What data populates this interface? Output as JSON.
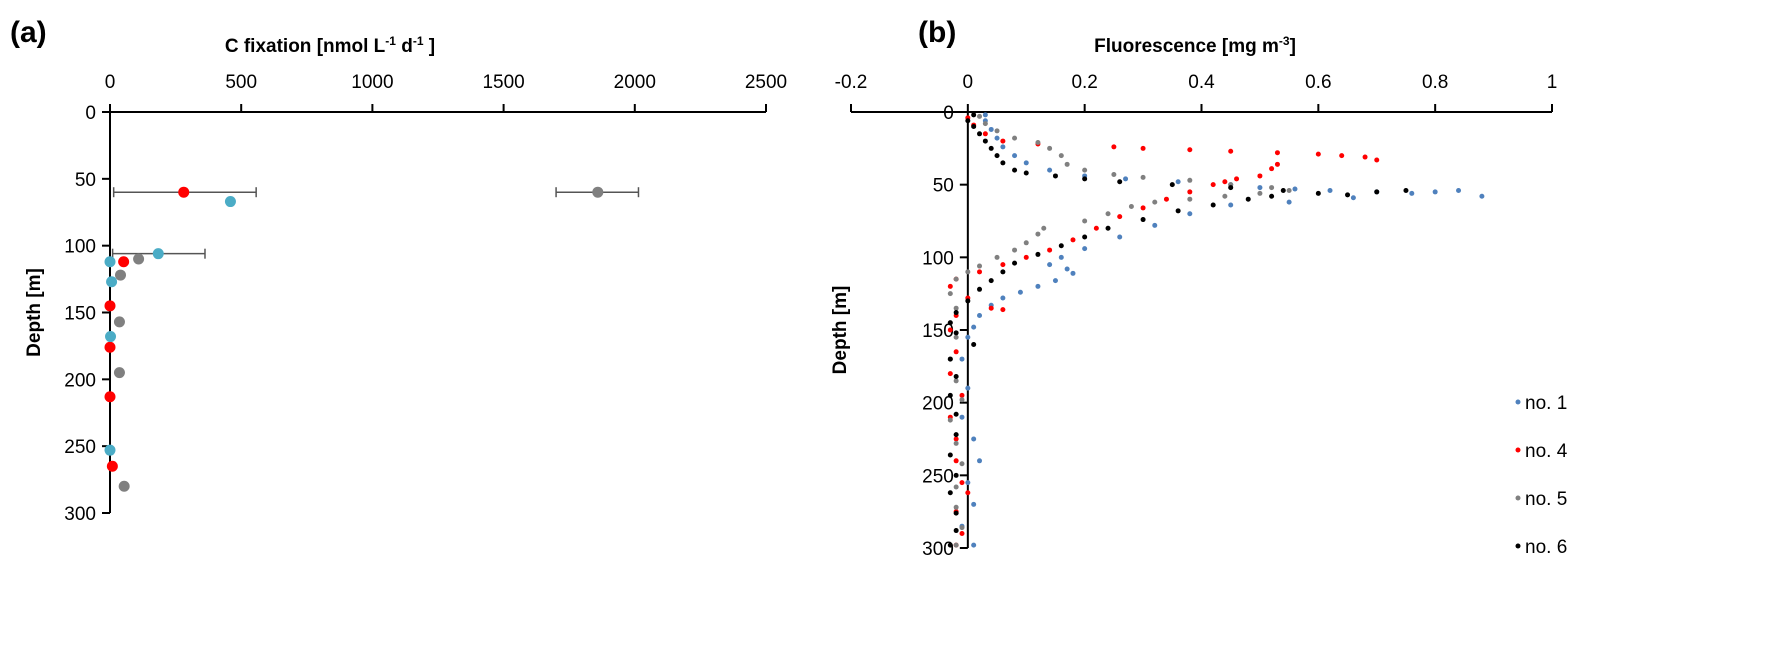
{
  "chart_data": [
    {
      "panel_label": "(a)",
      "type": "scatter",
      "xlabel_parts": [
        "C fixation [nmol L",
        "-1",
        " d",
        "-1",
        " ]"
      ],
      "ylabel": "Depth [m]",
      "xlim": [
        0,
        2500
      ],
      "ylim": [
        0,
        300
      ],
      "y_inverted": true,
      "x_axis_position": "top",
      "xticks": [
        "0",
        "500",
        "1000",
        "1500",
        "2000",
        "2500"
      ],
      "yticks": [
        "0",
        "50",
        "100",
        "150",
        "200",
        "250",
        "300"
      ],
      "grid": false,
      "legend": "none",
      "series": [
        {
          "color": "#FF0000",
          "points": [
            {
              "x": 281,
              "y": 60,
              "xerr": [
                14,
                557
              ]
            },
            {
              "x": 52,
              "y": 112
            },
            {
              "x": 0,
              "y": 145
            },
            {
              "x": 0,
              "y": 176
            },
            {
              "x": 0,
              "y": 213
            },
            {
              "x": 9,
              "y": 265
            }
          ]
        },
        {
          "color": "#4BACC6",
          "points": [
            {
              "x": 459,
              "y": 67
            },
            {
              "x": 184,
              "y": 106,
              "xerr": [
                10,
                362
              ]
            },
            {
              "x": 0,
              "y": 112
            },
            {
              "x": 6,
              "y": 127
            },
            {
              "x": 2,
              "y": 168
            },
            {
              "x": 0,
              "y": 253
            }
          ]
        },
        {
          "color": "#808080",
          "points": [
            {
              "x": 1859,
              "y": 60,
              "xerr": [
                1700,
                2014
              ]
            },
            {
              "x": 109,
              "y": 110
            },
            {
              "x": 40,
              "y": 122
            },
            {
              "x": 36,
              "y": 157
            },
            {
              "x": 36,
              "y": 195
            },
            {
              "x": 54,
              "y": 280
            }
          ]
        }
      ]
    },
    {
      "panel_label": "(b)",
      "type": "scatter",
      "xlabel_parts": [
        "Fluorescence [mg m",
        "-3",
        "]"
      ],
      "ylabel": "Depth [m]",
      "xlim": [
        -0.2,
        1
      ],
      "ylim": [
        0,
        300
      ],
      "y_inverted": true,
      "x_axis_position": "top",
      "xticks": [
        "-0.2",
        "0",
        "0.2",
        "0.4",
        "0.6",
        "0.8",
        "1"
      ],
      "yticks": [
        "0",
        "50",
        "100",
        "150",
        "200",
        "250",
        "300"
      ],
      "grid": false,
      "legend": "right",
      "series": [
        {
          "name": "no. 1",
          "color": "#4F81BD",
          "points": [
            [
              0.03,
              2
            ],
            [
              0.03,
              6
            ],
            [
              0.04,
              12
            ],
            [
              0.05,
              18
            ],
            [
              0.06,
              24
            ],
            [
              0.08,
              30
            ],
            [
              0.1,
              35
            ],
            [
              0.14,
              40
            ],
            [
              0.2,
              44
            ],
            [
              0.27,
              46
            ],
            [
              0.36,
              48
            ],
            [
              0.45,
              50
            ],
            [
              0.5,
              52
            ],
            [
              0.56,
              53
            ],
            [
              0.62,
              54
            ],
            [
              0.7,
              55
            ],
            [
              0.76,
              56
            ],
            [
              0.8,
              55
            ],
            [
              0.84,
              54
            ],
            [
              0.88,
              58
            ],
            [
              0.66,
              59
            ],
            [
              0.55,
              62
            ],
            [
              0.45,
              64
            ],
            [
              0.38,
              70
            ],
            [
              0.32,
              78
            ],
            [
              0.26,
              86
            ],
            [
              0.2,
              94
            ],
            [
              0.16,
              100
            ],
            [
              0.14,
              105
            ],
            [
              0.17,
              108
            ],
            [
              0.18,
              111
            ],
            [
              0.15,
              116
            ],
            [
              0.12,
              120
            ],
            [
              0.09,
              124
            ],
            [
              0.06,
              128
            ],
            [
              0.04,
              133
            ],
            [
              0.02,
              140
            ],
            [
              0.01,
              148
            ],
            [
              0.0,
              155
            ],
            [
              -0.01,
              170
            ],
            [
              0.0,
              190
            ],
            [
              -0.01,
              210
            ],
            [
              0.01,
              225
            ],
            [
              0.02,
              240
            ],
            [
              0.0,
              255
            ],
            [
              0.01,
              270
            ],
            [
              -0.01,
              285
            ],
            [
              0.01,
              298
            ]
          ]
        },
        {
          "name": "no. 4",
          "color": "#FF0000",
          "points": [
            [
              0.0,
              4
            ],
            [
              0.01,
              9
            ],
            [
              0.03,
              15
            ],
            [
              0.06,
              20
            ],
            [
              0.12,
              22
            ],
            [
              0.25,
              24
            ],
            [
              0.3,
              25
            ],
            [
              0.38,
              26
            ],
            [
              0.45,
              27
            ],
            [
              0.53,
              28
            ],
            [
              0.6,
              29
            ],
            [
              0.64,
              30
            ],
            [
              0.68,
              31
            ],
            [
              0.7,
              33
            ],
            [
              0.53,
              36
            ],
            [
              0.52,
              39
            ],
            [
              0.5,
              44
            ],
            [
              0.46,
              46
            ],
            [
              0.44,
              48
            ],
            [
              0.42,
              50
            ],
            [
              0.38,
              55
            ],
            [
              0.34,
              60
            ],
            [
              0.3,
              66
            ],
            [
              0.26,
              72
            ],
            [
              0.22,
              80
            ],
            [
              0.18,
              88
            ],
            [
              0.14,
              95
            ],
            [
              0.1,
              100
            ],
            [
              0.06,
              105
            ],
            [
              0.02,
              110
            ],
            [
              -0.02,
              115
            ],
            [
              -0.03,
              120
            ],
            [
              0.0,
              128
            ],
            [
              0.04,
              135
            ],
            [
              0.06,
              136
            ],
            [
              -0.02,
              140
            ],
            [
              -0.03,
              150
            ],
            [
              -0.02,
              165
            ],
            [
              -0.03,
              180
            ],
            [
              -0.01,
              195
            ],
            [
              -0.03,
              210
            ],
            [
              -0.02,
              225
            ],
            [
              -0.02,
              240
            ],
            [
              -0.01,
              255
            ],
            [
              0.0,
              262
            ],
            [
              -0.02,
              275
            ],
            [
              -0.01,
              290
            ],
            [
              -0.02,
              298
            ]
          ]
        },
        {
          "name": "no. 5",
          "color": "#808080",
          "points": [
            [
              0.02,
              3
            ],
            [
              0.03,
              8
            ],
            [
              0.05,
              13
            ],
            [
              0.08,
              18
            ],
            [
              0.12,
              21
            ],
            [
              0.14,
              25
            ],
            [
              0.16,
              30
            ],
            [
              0.17,
              36
            ],
            [
              0.2,
              40
            ],
            [
              0.25,
              43
            ],
            [
              0.3,
              45
            ],
            [
              0.38,
              47
            ],
            [
              0.45,
              50
            ],
            [
              0.52,
              52
            ],
            [
              0.55,
              54
            ],
            [
              0.5,
              56
            ],
            [
              0.44,
              58
            ],
            [
              0.38,
              60
            ],
            [
              0.32,
              62
            ],
            [
              0.28,
              65
            ],
            [
              0.24,
              70
            ],
            [
              0.2,
              75
            ],
            [
              0.13,
              80
            ],
            [
              0.12,
              84
            ],
            [
              0.1,
              90
            ],
            [
              0.08,
              95
            ],
            [
              0.05,
              100
            ],
            [
              0.02,
              106
            ],
            [
              0.0,
              110
            ],
            [
              -0.02,
              115
            ],
            [
              -0.03,
              125
            ],
            [
              -0.02,
              135
            ],
            [
              -0.03,
              145
            ],
            [
              -0.02,
              155
            ],
            [
              -0.03,
              170
            ],
            [
              -0.02,
              185
            ],
            [
              -0.01,
              198
            ],
            [
              -0.03,
              212
            ],
            [
              -0.02,
              228
            ],
            [
              -0.01,
              242
            ],
            [
              -0.02,
              258
            ],
            [
              -0.02,
              272
            ],
            [
              -0.01,
              286
            ],
            [
              -0.02,
              298
            ]
          ]
        },
        {
          "name": "no. 6",
          "color": "#000000",
          "points": [
            [
              0.01,
              2
            ],
            [
              0.0,
              6
            ],
            [
              0.01,
              10
            ],
            [
              0.02,
              15
            ],
            [
              0.03,
              20
            ],
            [
              0.04,
              25
            ],
            [
              0.05,
              30
            ],
            [
              0.06,
              35
            ],
            [
              0.08,
              40
            ],
            [
              0.1,
              42
            ],
            [
              0.15,
              44
            ],
            [
              0.2,
              46
            ],
            [
              0.26,
              48
            ],
            [
              0.35,
              50
            ],
            [
              0.45,
              52
            ],
            [
              0.54,
              54
            ],
            [
              0.6,
              56
            ],
            [
              0.65,
              57
            ],
            [
              0.7,
              55
            ],
            [
              0.75,
              54
            ],
            [
              0.52,
              58
            ],
            [
              0.48,
              60
            ],
            [
              0.42,
              64
            ],
            [
              0.36,
              68
            ],
            [
              0.3,
              74
            ],
            [
              0.24,
              80
            ],
            [
              0.2,
              86
            ],
            [
              0.16,
              92
            ],
            [
              0.12,
              98
            ],
            [
              0.08,
              104
            ],
            [
              0.06,
              110
            ],
            [
              0.04,
              116
            ],
            [
              0.02,
              122
            ],
            [
              0.0,
              130
            ],
            [
              -0.02,
              138
            ],
            [
              -0.03,
              145
            ],
            [
              -0.02,
              152
            ],
            [
              0.01,
              160
            ],
            [
              -0.03,
              170
            ],
            [
              -0.02,
              182
            ],
            [
              -0.03,
              195
            ],
            [
              -0.02,
              208
            ],
            [
              -0.02,
              222
            ],
            [
              -0.03,
              236
            ],
            [
              -0.02,
              250
            ],
            [
              -0.03,
              262
            ],
            [
              -0.02,
              276
            ],
            [
              -0.02,
              288
            ],
            [
              -0.03,
              298
            ]
          ]
        }
      ]
    }
  ]
}
